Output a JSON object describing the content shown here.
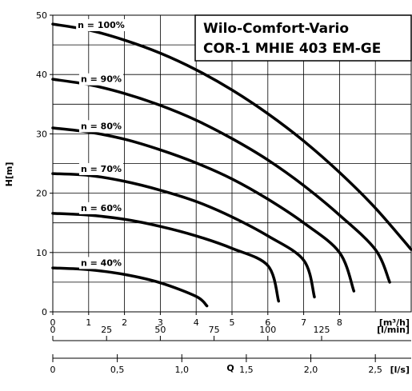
{
  "chart_data": {
    "type": "line",
    "title": [
      "Wilo-Comfort-Vario",
      "COR-1 MHIE 403 EM-GE"
    ],
    "ylabel": "H[m]",
    "xlabel": "Q",
    "ylim": [
      0,
      50
    ],
    "yticks": [
      0,
      10,
      20,
      30,
      40,
      50
    ],
    "x_axes": [
      {
        "unit": "[m³/h]",
        "range": [
          0,
          10
        ],
        "ticks": [
          {
            "v": 0,
            "label": "0"
          },
          {
            "v": 1,
            "label": "1"
          },
          {
            "v": 2,
            "label": "2"
          },
          {
            "v": 3,
            "label": "3"
          },
          {
            "v": 4,
            "label": "4"
          },
          {
            "v": 5,
            "label": "5"
          },
          {
            "v": 6,
            "label": "6"
          },
          {
            "v": 7,
            "label": "7"
          },
          {
            "v": 8,
            "label": "8"
          }
        ]
      },
      {
        "unit": "[l/min]",
        "range": [
          0,
          166.67
        ],
        "ticks": [
          {
            "v": 0,
            "label": "0"
          },
          {
            "v": 25,
            "label": "25"
          },
          {
            "v": 50,
            "label": "50"
          },
          {
            "v": 75,
            "label": "75"
          },
          {
            "v": 100,
            "label": "100"
          },
          {
            "v": 125,
            "label": "125"
          }
        ]
      },
      {
        "unit": "[l/s]",
        "range": [
          0,
          2.778
        ],
        "ticks": [
          {
            "v": 0,
            "label": "0"
          },
          {
            "v": 0.5,
            "label": "0,5"
          },
          {
            "v": 1.0,
            "label": "1,0"
          },
          {
            "v": 1.5,
            "label": "1,5"
          },
          {
            "v": 2.0,
            "label": "2,0"
          },
          {
            "v": 2.5,
            "label": "2,5"
          }
        ]
      }
    ],
    "grid": true,
    "series": [
      {
        "name": "n = 100%",
        "x": [
          0,
          1,
          2,
          3,
          4,
          5,
          6,
          7,
          8,
          9,
          10
        ],
        "y": [
          48.5,
          47.5,
          45.8,
          43.6,
          40.8,
          37.4,
          33.4,
          28.8,
          23.5,
          17.5,
          10.5
        ]
      },
      {
        "name": "n = 90%",
        "x": [
          0,
          1,
          2,
          3,
          4,
          5,
          6,
          7,
          8,
          9,
          9.4
        ],
        "y": [
          39.2,
          38.3,
          36.8,
          34.8,
          32.3,
          29.2,
          25.6,
          21.3,
          16.3,
          10.5,
          5.0
        ]
      },
      {
        "name": "n = 80%",
        "x": [
          0,
          1,
          2,
          3,
          4,
          5,
          6,
          7,
          8,
          8.4
        ],
        "y": [
          31.0,
          30.3,
          29.1,
          27.3,
          25.1,
          22.4,
          19.0,
          15.0,
          10.0,
          3.5
        ]
      },
      {
        "name": "n = 70%",
        "x": [
          0,
          1,
          2,
          3,
          4,
          5,
          6,
          7,
          7.3
        ],
        "y": [
          23.3,
          23.0,
          22.0,
          20.5,
          18.6,
          16.0,
          12.8,
          8.7,
          2.5
        ]
      },
      {
        "name": "n = 60%",
        "x": [
          0,
          1,
          2,
          3,
          4,
          5,
          6,
          6.3
        ],
        "y": [
          16.6,
          16.3,
          15.6,
          14.4,
          12.8,
          10.7,
          7.8,
          1.8
        ]
      },
      {
        "name": "n = 40%",
        "x": [
          0,
          1,
          2,
          3,
          4,
          4.3
        ],
        "y": [
          7.4,
          7.1,
          6.3,
          4.9,
          2.6,
          1.0
        ]
      }
    ]
  }
}
